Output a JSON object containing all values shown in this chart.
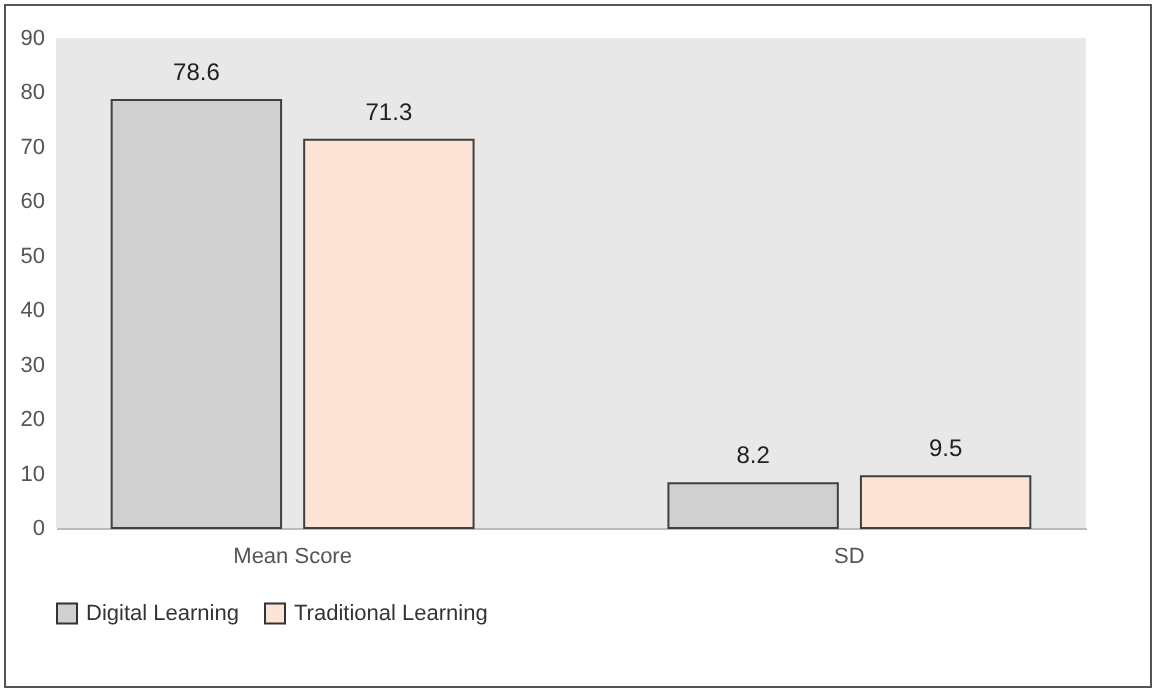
{
  "chart_data": {
    "type": "bar",
    "categories": [
      "Mean Score",
      "SD"
    ],
    "series": [
      {
        "name": "Digital Learning",
        "color": "#d0d0d0",
        "values": [
          78.6,
          8.2
        ]
      },
      {
        "name": "Traditional Learning",
        "color": "#fbe3d6",
        "values": [
          71.3,
          9.5
        ]
      }
    ],
    "ylim": [
      0,
      90
    ],
    "yticks": [
      0,
      10,
      20,
      30,
      40,
      50,
      60,
      70,
      80,
      90
    ],
    "grid": false,
    "legend": "bottom",
    "data_labels": true
  }
}
